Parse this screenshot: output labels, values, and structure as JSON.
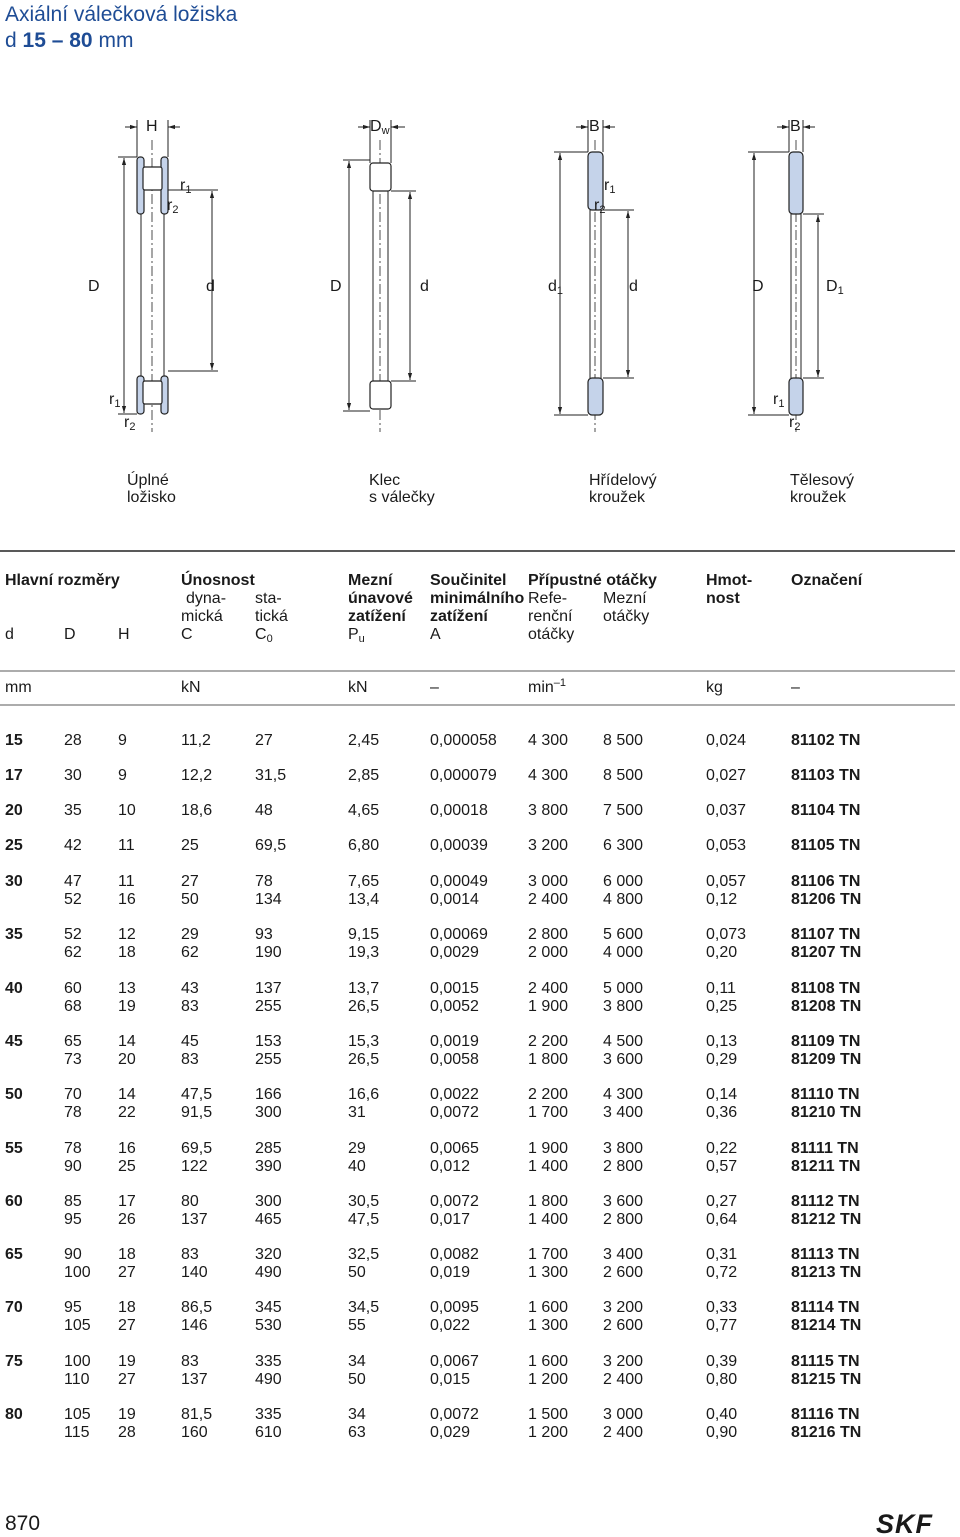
{
  "title": "Axiální válečková ložiska",
  "subtitle": {
    "prefix": "d",
    "range": "15 – 80",
    "unit": "mm"
  },
  "diagrams": [
    {
      "labels": [
        "H",
        {
          "text": "r",
          "sub": "1"
        },
        {
          "text": "r",
          "sub": "2"
        },
        "D",
        "d",
        {
          "text": "r",
          "sub": "1"
        },
        {
          "text": "r",
          "sub": "2"
        }
      ],
      "caption": [
        "Úplné",
        "ložisko"
      ]
    },
    {
      "labels": [
        {
          "text": "D",
          "sub": "w"
        },
        "D",
        "d"
      ],
      "caption": [
        "Klec",
        "s válečky"
      ]
    },
    {
      "labels": [
        "B",
        {
          "text": "r",
          "sub": "1"
        },
        {
          "text": "r",
          "sub": "2"
        },
        {
          "text": "d",
          "sub": "1"
        },
        "d"
      ],
      "caption": [
        "Hřídelový",
        "kroužek"
      ]
    },
    {
      "labels": [
        "B",
        "D",
        {
          "text": "D",
          "sub": "1"
        },
        {
          "text": "r",
          "sub": "1"
        },
        {
          "text": "r",
          "sub": "2"
        }
      ],
      "caption": [
        "Tělesový",
        "kroužek"
      ]
    }
  ],
  "header": {
    "main_dimensions": "Hlavní rozměry",
    "load_ratings": {
      "title": "Únosnost",
      "dynamic": [
        "dyna-",
        "mická"
      ],
      "static": [
        "sta-",
        "tická"
      ]
    },
    "fatigue_load": [
      "Mezní",
      "únavové",
      "zatížení"
    ],
    "min_load_factor": [
      "Součinitel",
      "minimálního",
      "zatížení"
    ],
    "speed_ratings": {
      "title": "Přípustné otáčky",
      "reference": [
        "Refe-",
        "renční",
        "otáčky"
      ],
      "limiting": [
        "Mezní",
        "otáčky"
      ]
    },
    "mass": [
      "Hmot-",
      "nost"
    ],
    "designation": "Označení",
    "symbols": [
      "d",
      "D",
      "H",
      "C",
      {
        "text": "C",
        "sub": "0"
      },
      {
        "text": "P",
        "sub": "u"
      },
      "A"
    ],
    "units": [
      "mm",
      "kN",
      "kN",
      "–",
      {
        "text": "min",
        "sup": "–1"
      },
      "kg",
      "–"
    ]
  },
  "rows": [
    {
      "d": "15",
      "items": [
        [
          "28",
          "9",
          "11,2",
          "27",
          "2,45",
          "0,000058",
          "4 300",
          "8 500",
          "0,024",
          "81102 TN"
        ]
      ]
    },
    {
      "d": "17",
      "items": [
        [
          "30",
          "9",
          "12,2",
          "31,5",
          "2,85",
          "0,000079",
          "4 300",
          "8 500",
          "0,027",
          "81103 TN"
        ]
      ]
    },
    {
      "d": "20",
      "items": [
        [
          "35",
          "10",
          "18,6",
          "48",
          "4,65",
          "0,00018",
          "3 800",
          "7 500",
          "0,037",
          "81104 TN"
        ]
      ]
    },
    {
      "d": "25",
      "items": [
        [
          "42",
          "11",
          "25",
          "69,5",
          "6,80",
          "0,00039",
          "3 200",
          "6 300",
          "0,053",
          "81105 TN"
        ]
      ]
    },
    {
      "d": "30",
      "items": [
        [
          "47",
          "11",
          "27",
          "78",
          "7,65",
          "0,00049",
          "3 000",
          "6 000",
          "0,057",
          "81106 TN"
        ],
        [
          "52",
          "16",
          "50",
          "134",
          "13,4",
          "0,0014",
          "2 400",
          "4 800",
          "0,12",
          "81206 TN"
        ]
      ]
    },
    {
      "d": "35",
      "items": [
        [
          "52",
          "12",
          "29",
          "93",
          "9,15",
          "0,00069",
          "2 800",
          "5 600",
          "0,073",
          "81107 TN"
        ],
        [
          "62",
          "18",
          "62",
          "190",
          "19,3",
          "0,0029",
          "2 000",
          "4 000",
          "0,20",
          "81207 TN"
        ]
      ]
    },
    {
      "d": "40",
      "items": [
        [
          "60",
          "13",
          "43",
          "137",
          "13,7",
          "0,0015",
          "2 400",
          "5 000",
          "0,11",
          "81108 TN"
        ],
        [
          "68",
          "19",
          "83",
          "255",
          "26,5",
          "0,0052",
          "1 900",
          "3 800",
          "0,25",
          "81208 TN"
        ]
      ]
    },
    {
      "d": "45",
      "items": [
        [
          "65",
          "14",
          "45",
          "153",
          "15,3",
          "0,0019",
          "2 200",
          "4 500",
          "0,13",
          "81109 TN"
        ],
        [
          "73",
          "20",
          "83",
          "255",
          "26,5",
          "0,0058",
          "1 800",
          "3 600",
          "0,29",
          "81209 TN"
        ]
      ]
    },
    {
      "d": "50",
      "items": [
        [
          "70",
          "14",
          "47,5",
          "166",
          "16,6",
          "0,0022",
          "2 200",
          "4 300",
          "0,14",
          "81110 TN"
        ],
        [
          "78",
          "22",
          "91,5",
          "300",
          "31",
          "0,0072",
          "1 700",
          "3 400",
          "0,36",
          "81210 TN"
        ]
      ]
    },
    {
      "d": "55",
      "items": [
        [
          "78",
          "16",
          "69,5",
          "285",
          "29",
          "0,0065",
          "1 900",
          "3 800",
          "0,22",
          "81111 TN"
        ],
        [
          "90",
          "25",
          "122",
          "390",
          "40",
          "0,012",
          "1 400",
          "2 800",
          "0,57",
          "81211 TN"
        ]
      ]
    },
    {
      "d": "60",
      "items": [
        [
          "85",
          "17",
          "80",
          "300",
          "30,5",
          "0,0072",
          "1 800",
          "3 600",
          "0,27",
          "81112 TN"
        ],
        [
          "95",
          "26",
          "137",
          "465",
          "47,5",
          "0,017",
          "1 400",
          "2 800",
          "0,64",
          "81212 TN"
        ]
      ]
    },
    {
      "d": "65",
      "items": [
        [
          "90",
          "18",
          "83",
          "320",
          "32,5",
          "0,0082",
          "1 700",
          "3 400",
          "0,31",
          "81113 TN"
        ],
        [
          "100",
          "27",
          "140",
          "490",
          "50",
          "0,019",
          "1 300",
          "2 600",
          "0,72",
          "81213 TN"
        ]
      ]
    },
    {
      "d": "70",
      "items": [
        [
          "95",
          "18",
          "86,5",
          "345",
          "34,5",
          "0,0095",
          "1 600",
          "3 200",
          "0,33",
          "81114 TN"
        ],
        [
          "105",
          "27",
          "146",
          "530",
          "55",
          "0,022",
          "1 300",
          "2 600",
          "0,77",
          "81214 TN"
        ]
      ]
    },
    {
      "d": "75",
      "items": [
        [
          "100",
          "19",
          "83",
          "335",
          "34",
          "0,0067",
          "1 600",
          "3 200",
          "0,39",
          "81115 TN"
        ],
        [
          "110",
          "27",
          "137",
          "490",
          "50",
          "0,015",
          "1 200",
          "2 400",
          "0,80",
          "81215 TN"
        ]
      ]
    },
    {
      "d": "80",
      "items": [
        [
          "105",
          "19",
          "81,5",
          "335",
          "34",
          "0,0072",
          "1 500",
          "3 000",
          "0,40",
          "81116 TN"
        ],
        [
          "115",
          "28",
          "160",
          "610",
          "63",
          "0,029",
          "1 200",
          "2 400",
          "0,90",
          "81216 TN"
        ]
      ]
    }
  ],
  "page_number": "870",
  "logo": "SKF"
}
